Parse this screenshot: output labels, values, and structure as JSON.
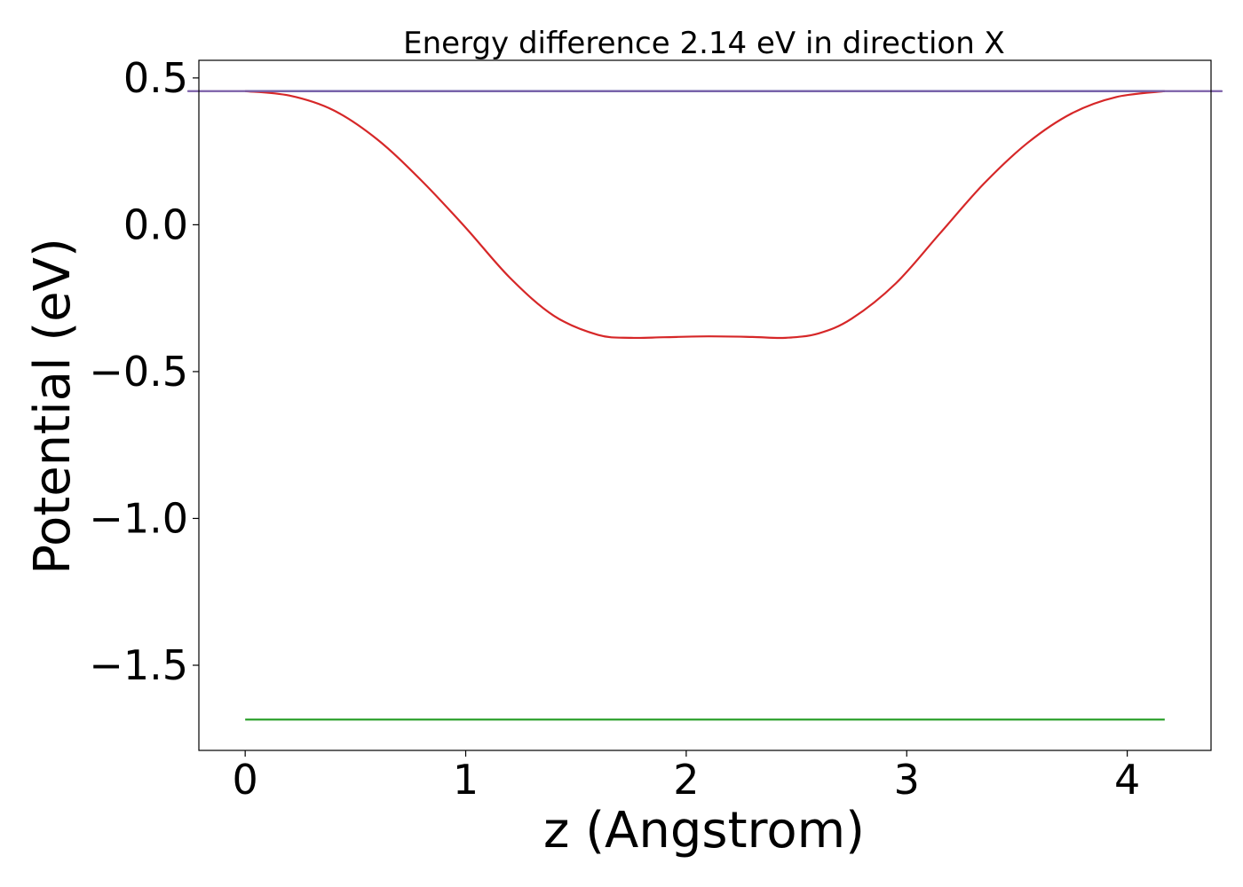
{
  "chart_data": {
    "type": "line",
    "title": "Energy difference 2.14 eV in direction X",
    "xlabel": "z (Angstrom)",
    "ylabel": "Potential (eV)",
    "xlim": [
      -0.21,
      4.38
    ],
    "ylim": [
      -1.79,
      0.56
    ],
    "grid": false,
    "x_ticks": [
      0,
      1,
      2,
      3,
      4
    ],
    "x_tick_labels": [
      "0",
      "1",
      "2",
      "3",
      "4"
    ],
    "y_ticks": [
      0.5,
      0.0,
      -0.5,
      -1.0,
      -1.5
    ],
    "y_tick_labels": [
      "0.5",
      "0.0",
      "−0.5",
      "−1.0",
      "−1.5"
    ],
    "series": [
      {
        "color": "#1f77b4",
        "x": [
          0,
          4.17
        ],
        "y": [
          0.455,
          0.455
        ]
      },
      {
        "color": "#2ca02c",
        "x": [
          0,
          4.17
        ],
        "y": [
          -1.685,
          -1.685
        ]
      },
      {
        "color": "#d62728",
        "x": [
          0,
          0.2,
          0.4,
          0.6,
          0.8,
          1.0,
          1.2,
          1.4,
          1.6,
          1.75,
          1.9,
          2.1,
          2.3,
          2.45,
          2.6,
          2.75,
          2.95,
          3.15,
          3.35,
          3.55,
          3.75,
          3.95,
          4.17
        ],
        "y": [
          0.455,
          0.44,
          0.39,
          0.29,
          0.15,
          -0.01,
          -0.18,
          -0.31,
          -0.375,
          -0.385,
          -0.383,
          -0.38,
          -0.382,
          -0.385,
          -0.37,
          -0.32,
          -0.2,
          -0.03,
          0.14,
          0.28,
          0.38,
          0.435,
          0.455
        ]
      },
      {
        "color": "#7b5fa8",
        "x": [
          0,
          0.06,
          4.11,
          4.17
        ],
        "y": [
          0.455,
          0.455,
          0.455,
          0.455
        ]
      }
    ]
  }
}
